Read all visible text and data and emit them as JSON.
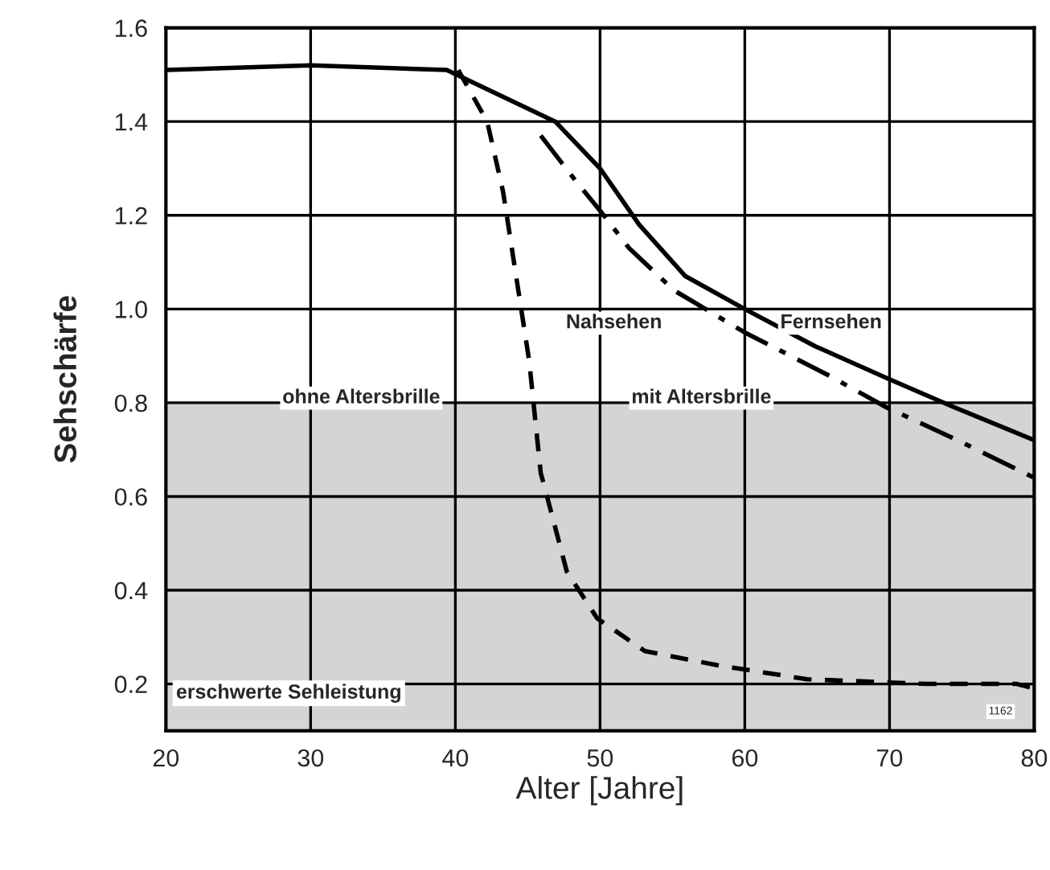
{
  "chart_data": {
    "type": "line",
    "xlabel": "Alter [Jahre]",
    "ylabel": "Sehschärfe",
    "xlim": [
      20,
      80
    ],
    "xticks": [
      20,
      30,
      40,
      50,
      60,
      70,
      80
    ],
    "ylim": [
      0.1,
      1.6
    ],
    "yticks": [
      {
        "value": 0.2,
        "label": "0.2"
      },
      {
        "value": 0.4,
        "label": "0.4"
      },
      {
        "value": 0.6,
        "label": "0.6"
      },
      {
        "value": 0.8,
        "label": "0.8"
      },
      {
        "value": 1.0,
        "label": "1.0"
      },
      {
        "value": 1.2,
        "label": "1.2"
      },
      {
        "value": 1.4,
        "label": "1.4"
      },
      {
        "value": 1.6,
        "label": "1.6"
      }
    ],
    "grid": true,
    "series": [
      {
        "color": "#000000",
        "line_style": "solid",
        "x": [
          20,
          30,
          39.4,
          46.9,
          50,
          52.7,
          55.9,
          60,
          64.9,
          70,
          74.5,
          80
        ],
        "values": [
          1.51,
          1.52,
          1.51,
          1.4,
          1.3,
          1.18,
          1.07,
          1.0,
          0.92,
          0.85,
          0.79,
          0.72
        ]
      },
      {
        "color": "#000000",
        "line_style": "dashdot",
        "x": [
          45.9,
          48.4,
          50,
          52,
          55.1,
          60,
          65.7,
          69.8,
          74.7,
          80
        ],
        "values": [
          1.37,
          1.27,
          1.21,
          1.13,
          1.04,
          0.95,
          0.86,
          0.79,
          0.72,
          0.64
        ]
      },
      {
        "color": "#000000",
        "line_style": "dashed",
        "x": [
          40.2,
          42.2,
          43.3,
          44.3,
          45.1,
          45.9,
          46.25,
          47.7,
          49.8,
          53.1,
          58.1,
          64.3,
          72.6,
          78.8,
          80
        ],
        "values": [
          1.51,
          1.4,
          1.25,
          1.05,
          0.89,
          0.65,
          0.61,
          0.44,
          0.34,
          0.27,
          0.24,
          0.21,
          0.2,
          0.2,
          0.19
        ]
      }
    ],
    "bands": [
      {
        "axis": "y",
        "from": 0.1,
        "to": 0.8,
        "label": "erschwerte Sehleistung",
        "color": "#d4d4d4"
      }
    ],
    "annotations": [
      "Nahsehen",
      "Fernsehen",
      {
        "text": "ohne Altersbrille",
        "x": 33.5,
        "y": 0.81
      },
      {
        "text": "mit Altersbrille",
        "x": 57,
        "y": 0.81
      },
      "1162"
    ]
  }
}
